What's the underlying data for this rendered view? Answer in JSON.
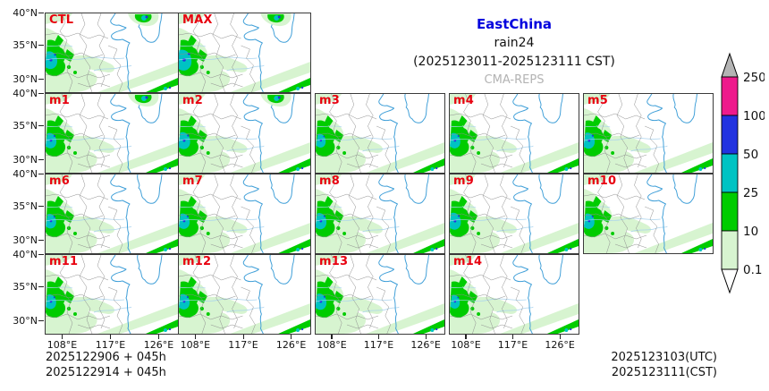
{
  "title": {
    "region": "EastChina",
    "variable": "rain24",
    "period": "(2025123011-2025123111 CST)",
    "model": "CMA-REPS"
  },
  "panels": [
    {
      "label": "CTL",
      "row": 0,
      "col": 0,
      "ne_storm": true,
      "intensity": 1.15
    },
    {
      "label": "MAX",
      "row": 0,
      "col": 1,
      "ne_storm": true,
      "intensity": 1.35
    },
    {
      "label": "m1",
      "row": 1,
      "col": 0,
      "ne_storm": true,
      "intensity": 1.0
    },
    {
      "label": "m2",
      "row": 1,
      "col": 1,
      "ne_storm": true,
      "intensity": 1.1
    },
    {
      "label": "m3",
      "row": 1,
      "col": 2,
      "ne_storm": false,
      "intensity": 0.9
    },
    {
      "label": "m4",
      "row": 1,
      "col": 3,
      "ne_storm": false,
      "intensity": 1.0
    },
    {
      "label": "m5",
      "row": 1,
      "col": 4,
      "ne_storm": false,
      "intensity": 1.05
    },
    {
      "label": "m6",
      "row": 2,
      "col": 0,
      "ne_storm": false,
      "intensity": 0.95
    },
    {
      "label": "m7",
      "row": 2,
      "col": 1,
      "ne_storm": false,
      "intensity": 1.0
    },
    {
      "label": "m8",
      "row": 2,
      "col": 2,
      "ne_storm": false,
      "intensity": 1.05
    },
    {
      "label": "m9",
      "row": 2,
      "col": 3,
      "ne_storm": false,
      "intensity": 1.1
    },
    {
      "label": "m10",
      "row": 2,
      "col": 4,
      "ne_storm": false,
      "intensity": 1.0
    },
    {
      "label": "m11",
      "row": 3,
      "col": 0,
      "ne_storm": false,
      "intensity": 0.95
    },
    {
      "label": "m12",
      "row": 3,
      "col": 1,
      "ne_storm": false,
      "intensity": 1.0
    },
    {
      "label": "m13",
      "row": 3,
      "col": 2,
      "ne_storm": false,
      "intensity": 1.05
    },
    {
      "label": "m14",
      "row": 3,
      "col": 3,
      "ne_storm": false,
      "intensity": 0.9
    }
  ],
  "axes": {
    "y_ticks": [
      "40°N",
      "35°N",
      "30°N"
    ],
    "x_ticks": [
      "108°E",
      "117°E",
      "126°E"
    ]
  },
  "colorbar": {
    "tick_labels": [
      "250",
      "100",
      "50",
      "25",
      "10",
      "0.1"
    ],
    "segment_colors": [
      "#ee1a8c",
      "#2233e0",
      "#00c3c3",
      "#00cc00",
      "#d7f4d0"
    ],
    "over_arrow_color": "#b4b4b4",
    "under_arrow_color": "#ffffff"
  },
  "map_colors": {
    "coastline": "#3f9fd8",
    "rivers": "#a9d3ee",
    "province_borders": "#8e8e8e",
    "panel_label_red": "#e8000f"
  },
  "footer": {
    "left_lines": [
      "2025122906 + 045h",
      "2025122914 + 045h"
    ],
    "right_lines": [
      "2025123103(UTC)",
      "2025123111(CST)"
    ]
  }
}
